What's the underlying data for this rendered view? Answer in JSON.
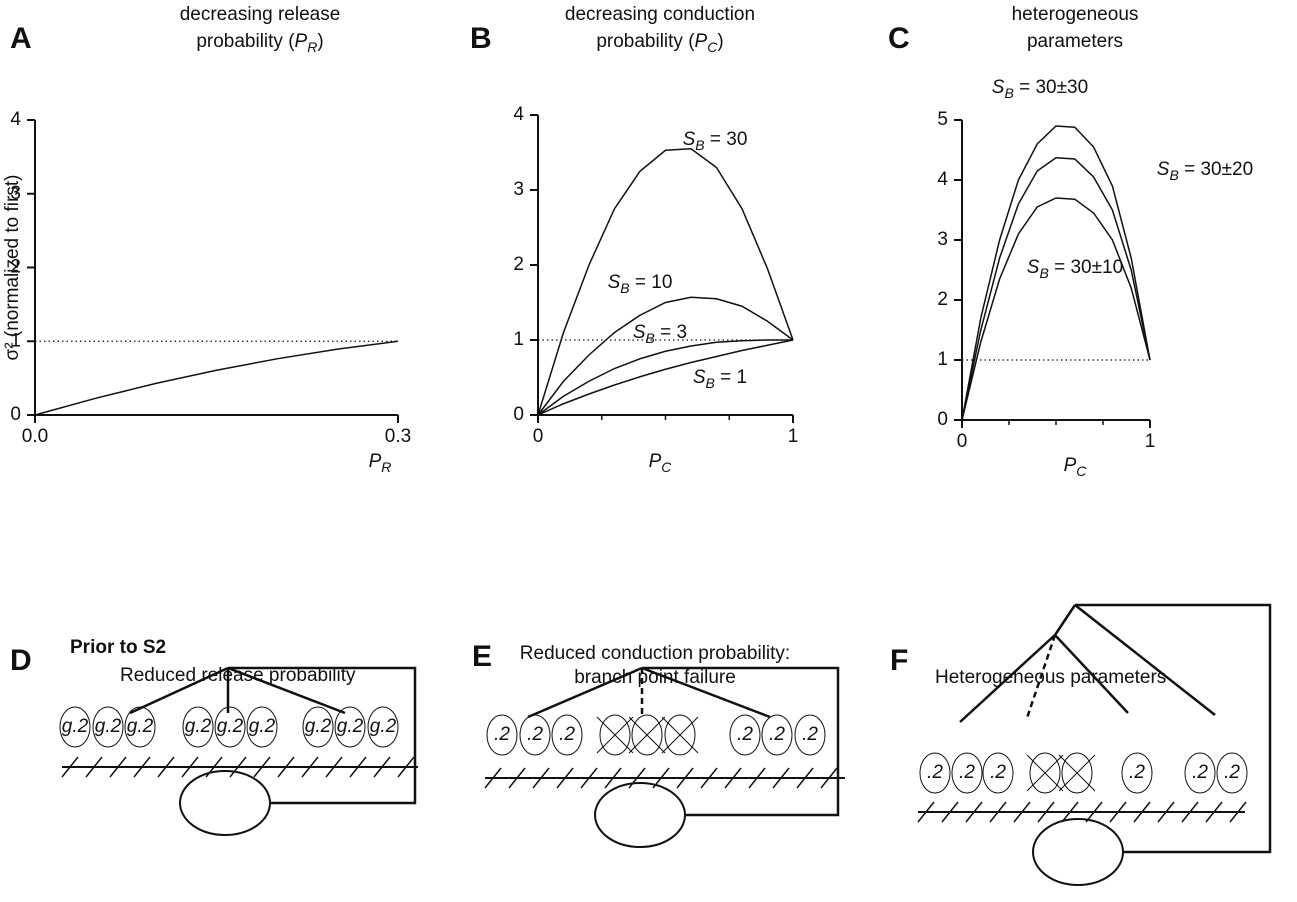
{
  "chart_data": [
    {
      "type": "line",
      "letter": "A",
      "title": [
        "decreasing release",
        "probability (PR)"
      ],
      "x_label": "PR",
      "y_label": "σ² (normalized to first)",
      "x": [
        0,
        0.05,
        0.1,
        0.15,
        0.2,
        0.25,
        0.3
      ],
      "series": [
        {
          "color": "#000000",
          "values": [
            0,
            0.226,
            0.429,
            0.607,
            0.762,
            0.893,
            1
          ]
        }
      ],
      "xlim": [
        0,
        0.3
      ],
      "ylim": [
        0,
        4
      ],
      "xticks": [
        {
          "value": 0,
          "label": "0.0"
        },
        0.3
      ],
      "yticks": [
        0,
        1,
        2,
        3,
        4
      ],
      "reference_line": 1
    },
    {
      "type": "line",
      "letter": "B",
      "title": [
        "decreasing conduction",
        "probability (PC)"
      ],
      "x_label": "PC",
      "x": [
        0,
        0.1,
        0.2,
        0.3,
        0.4,
        0.5,
        0.6,
        0.7,
        0.8,
        0.9,
        1
      ],
      "series": [
        {
          "name": "SB = 30",
          "color": "#000000",
          "values": [
            0,
            1.1,
            2.0,
            2.75,
            3.25,
            3.53,
            3.55,
            3.3,
            2.75,
            1.95,
            1
          ]
        },
        {
          "name": "SB = 10",
          "color": "#000000",
          "values": [
            0,
            0.45,
            0.8,
            1.1,
            1.33,
            1.5,
            1.57,
            1.55,
            1.45,
            1.25,
            1
          ]
        },
        {
          "name": "SB = 3",
          "color": "#000000",
          "values": [
            0,
            0.25,
            0.45,
            0.62,
            0.75,
            0.85,
            0.92,
            0.97,
            0.99,
            1.0,
            1
          ]
        },
        {
          "name": "SB = 1",
          "color": "#000000",
          "values": [
            0,
            0.15,
            0.28,
            0.4,
            0.51,
            0.61,
            0.7,
            0.78,
            0.86,
            0.93,
            1
          ]
        }
      ],
      "xlim": [
        0,
        1
      ],
      "ylim": [
        0,
        4
      ],
      "xticks": [
        0,
        1
      ],
      "xticks_minor": [
        0.25,
        0.5,
        0.75
      ],
      "yticks": [
        0,
        1,
        2,
        3,
        4
      ],
      "reference_line": 1
    },
    {
      "type": "line",
      "letter": "C",
      "title": [
        "heterogeneous",
        "parameters"
      ],
      "x_label": "PC",
      "x": [
        0,
        0.1,
        0.2,
        0.3,
        0.4,
        0.5,
        0.6,
        0.7,
        0.8,
        0.9,
        1
      ],
      "series": [
        {
          "name": "SB = 30±30",
          "color": "#000000",
          "values": [
            0,
            1.7,
            3.0,
            4.0,
            4.6,
            4.9,
            4.88,
            4.55,
            3.9,
            2.7,
            1
          ]
        },
        {
          "name": "SB = 30±20",
          "color": "#000000",
          "values": [
            0,
            1.5,
            2.7,
            3.6,
            4.15,
            4.37,
            4.35,
            4.05,
            3.5,
            2.5,
            1
          ]
        },
        {
          "name": "SB = 30±10",
          "color": "#000000",
          "values": [
            0,
            1.3,
            2.35,
            3.1,
            3.55,
            3.7,
            3.68,
            3.45,
            3.0,
            2.2,
            1
          ]
        }
      ],
      "xlim": [
        0,
        1
      ],
      "ylim": [
        0,
        5
      ],
      "xticks": [
        0,
        1
      ],
      "xticks_minor": [
        0.25,
        0.5,
        0.75
      ],
      "yticks": [
        0,
        1,
        2,
        3,
        4,
        5
      ],
      "reference_line": 1
    }
  ],
  "diagrams": [
    {
      "letter": "D",
      "subtitle": "Prior to S2",
      "title": [
        "Reduced release probability"
      ],
      "boutons": [
        "g.2",
        "g.2",
        "g.2",
        "g.2",
        "g.2",
        "g.2",
        "g.2",
        "g.2",
        "g.2"
      ]
    },
    {
      "letter": "E",
      "title": [
        "Reduced conduction probability:",
        "branch point failure"
      ],
      "boutons": [
        ".2",
        ".2",
        ".2",
        ".2",
        ".2",
        ".2"
      ]
    },
    {
      "letter": "F",
      "title": [
        "Heterogeneous parameters"
      ],
      "boutons": [
        ".2",
        ".2",
        ".2",
        ".2",
        ".2",
        ".2"
      ]
    }
  ]
}
